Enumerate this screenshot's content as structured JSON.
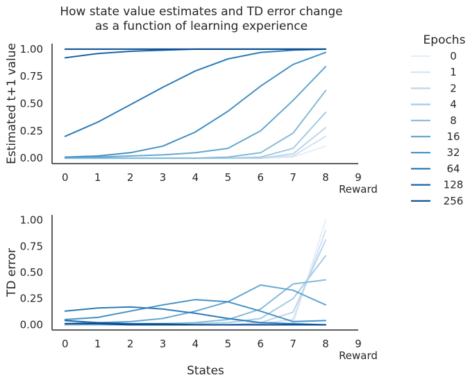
{
  "chart_data": {
    "title": [
      "How state value estimates and TD error change",
      "as a function of learning experience"
    ],
    "xlabel": "States",
    "x_ticks": [
      0,
      1,
      2,
      3,
      4,
      5,
      6,
      7,
      8,
      9
    ],
    "x_extra_label": "Reward",
    "legend_title": "Epochs",
    "legend_placement": "right",
    "grid": false,
    "colors": [
      "#e6eef8",
      "#d2e2f2",
      "#bcd6ea",
      "#a2cbe3",
      "#84bad9",
      "#64a6d0",
      "#4490c4",
      "#2b7bba",
      "#1664a8",
      "#08488e"
    ],
    "series_names": [
      "0",
      "1",
      "2",
      "4",
      "8",
      "16",
      "32",
      "64",
      "128",
      "256"
    ],
    "charts": [
      {
        "type": "line",
        "ylabel": "Estimated t+1 value",
        "ylim": [
          -0.05,
          1.05
        ],
        "y_ticks": [
          "0.00",
          "0.25",
          "0.50",
          "0.75",
          "1.00"
        ],
        "x": [
          0,
          1,
          2,
          3,
          4,
          5,
          6,
          7,
          8
        ],
        "series": [
          {
            "values": [
              0,
              0,
              0,
              0,
              0,
              0,
              0,
              0.01,
              0.11
            ]
          },
          {
            "values": [
              0,
              0,
              0,
              0,
              0,
              0,
              0,
              0.02,
              0.2
            ]
          },
          {
            "values": [
              0,
              0,
              0,
              0,
              0,
              0,
              0,
              0.04,
              0.28
            ]
          },
          {
            "values": [
              0,
              0,
              0,
              0,
              0,
              0,
              0.01,
              0.09,
              0.42
            ]
          },
          {
            "values": [
              0,
              0,
              0,
              0,
              0,
              0.01,
              0.05,
              0.23,
              0.62
            ]
          },
          {
            "values": [
              0.01,
              0.01,
              0.02,
              0.03,
              0.05,
              0.09,
              0.25,
              0.53,
              0.84
            ]
          },
          {
            "values": [
              0.01,
              0.02,
              0.05,
              0.11,
              0.24,
              0.43,
              0.66,
              0.86,
              0.97
            ]
          },
          {
            "values": [
              0.2,
              0.33,
              0.49,
              0.65,
              0.8,
              0.91,
              0.97,
              0.99,
              1.0
            ]
          },
          {
            "values": [
              0.92,
              0.96,
              0.98,
              0.99,
              1.0,
              1.0,
              1.0,
              1.0,
              1.0
            ]
          },
          {
            "values": [
              1.0,
              1.0,
              1.0,
              1.0,
              1.0,
              1.0,
              1.0,
              1.0,
              1.0
            ]
          }
        ]
      },
      {
        "type": "line",
        "ylabel": "TD error",
        "ylim": [
          -0.05,
          1.05
        ],
        "y_ticks": [
          "0.00",
          "0.25",
          "0.50",
          "0.75",
          "1.00"
        ],
        "x": [
          0,
          1,
          2,
          3,
          4,
          5,
          6,
          7,
          8
        ],
        "series": [
          {
            "values": [
              0,
              0,
              0,
              0,
              0,
              0,
              0,
              0.01,
              1.0
            ]
          },
          {
            "values": [
              0,
              0,
              0,
              0,
              0,
              0,
              0.01,
              0.05,
              0.9
            ]
          },
          {
            "values": [
              0,
              0,
              0,
              0,
              0,
              0,
              0.02,
              0.12,
              0.81
            ]
          },
          {
            "values": [
              0,
              0,
              0,
              0,
              0.01,
              0.02,
              0.06,
              0.25,
              0.66
            ]
          },
          {
            "values": [
              0,
              0,
              0,
              0.01,
              0.02,
              0.05,
              0.15,
              0.39,
              0.43
            ]
          },
          {
            "values": [
              0.01,
              0.02,
              0.03,
              0.06,
              0.13,
              0.22,
              0.38,
              0.33,
              0.19
            ]
          },
          {
            "values": [
              0.05,
              0.07,
              0.13,
              0.19,
              0.24,
              0.22,
              0.13,
              0.03,
              0.04
            ]
          },
          {
            "values": [
              0.13,
              0.16,
              0.17,
              0.15,
              0.11,
              0.06,
              0.02,
              0.01,
              0.0
            ]
          },
          {
            "values": [
              0.04,
              0.02,
              0.01,
              0.01,
              0.0,
              0.0,
              0.0,
              0.0,
              0.0
            ]
          },
          {
            "values": [
              0.01,
              0.01,
              0.0,
              0.0,
              0.0,
              0.0,
              0.0,
              0.0,
              0.0
            ]
          }
        ]
      }
    ]
  }
}
